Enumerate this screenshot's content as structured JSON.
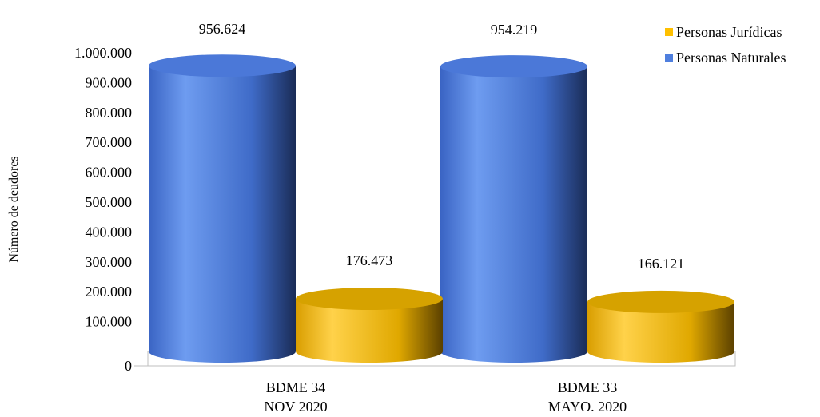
{
  "chart_data": {
    "type": "bar",
    "style": "3d-cylinder",
    "categories": [
      [
        "BDME 34",
        "NOV 2020"
      ],
      [
        "BDME 33",
        "MAYO. 2020"
      ]
    ],
    "series": [
      {
        "name": "Personas Naturales",
        "values": [
          956624,
          954219
        ],
        "labels": [
          "956.624",
          "954.219"
        ],
        "color": "#4f7fde"
      },
      {
        "name": "Personas Jurídicas",
        "values": [
          176473,
          166121
        ],
        "labels": [
          "176.473",
          "166.121"
        ],
        "color": "#ffc000"
      }
    ],
    "ylabel": "Número de deudores",
    "ylim": [
      0,
      1000000
    ],
    "yticks": [
      "0",
      "100.000",
      "200.000",
      "300.000",
      "400.000",
      "500.000",
      "600.000",
      "700.000",
      "800.000",
      "900.000",
      "1.000.000"
    ],
    "legend": {
      "position": "top-right",
      "entries": [
        "Personas Jurídicas",
        "Personas Naturales"
      ]
    },
    "grid": false
  }
}
